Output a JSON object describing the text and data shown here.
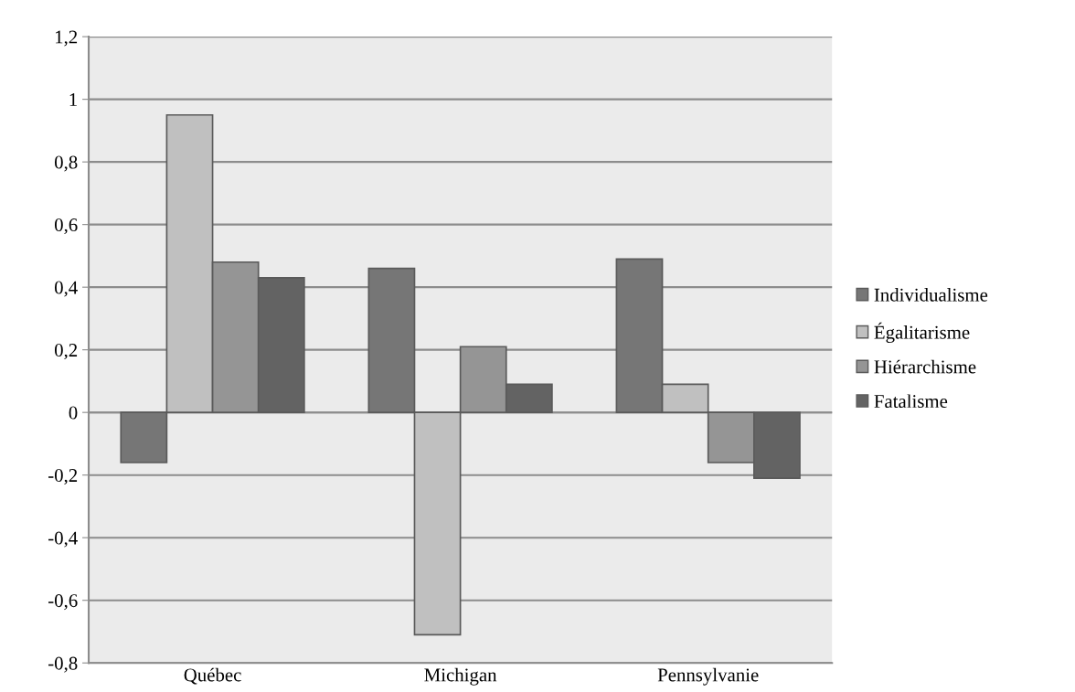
{
  "chart_data": {
    "type": "bar",
    "categories": [
      "Québec",
      "Michigan",
      "Pennsylvanie"
    ],
    "series": [
      {
        "name": "Individualisme",
        "color": "#767676",
        "values": [
          -0.16,
          0.46,
          0.49
        ]
      },
      {
        "name": "Égalitarisme",
        "color": "#c0c0c0",
        "values": [
          0.95,
          -0.71,
          0.09
        ]
      },
      {
        "name": "Hiérarchisme",
        "color": "#959595",
        "values": [
          0.48,
          0.21,
          -0.16
        ]
      },
      {
        "name": "Fatalisme",
        "color": "#636363",
        "values": [
          0.43,
          0.09,
          -0.21
        ]
      }
    ],
    "ylim": [
      -0.8,
      1.2
    ],
    "yticks": [
      {
        "value": -0.8,
        "label": "-0,8"
      },
      {
        "value": -0.6,
        "label": "-0,6"
      },
      {
        "value": -0.4,
        "label": "-0,4"
      },
      {
        "value": -0.2,
        "label": "-0,2"
      },
      0,
      {
        "value": 0.2,
        "label": "0,2"
      },
      {
        "value": 0.4,
        "label": "0,4"
      },
      {
        "value": 0.6,
        "label": "0,6"
      },
      {
        "value": 0.8,
        "label": "0,8"
      },
      1,
      {
        "value": 1.2,
        "label": "1,2"
      }
    ],
    "grid": "y",
    "legend": "right"
  }
}
